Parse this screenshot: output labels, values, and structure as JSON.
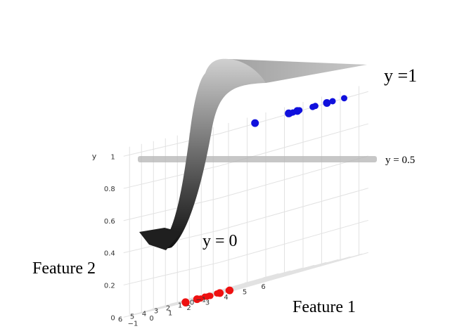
{
  "chart_data": {
    "type": "scatter",
    "subtype": "3d-surface-logistic",
    "zlabel": "y",
    "xlabel": "Feature 1",
    "ylabel": "Feature 2",
    "z_ticks": [
      "0",
      "0.2",
      "0.4",
      "0.6",
      "0.8",
      "1"
    ],
    "feature1_ticks": [
      "−1",
      "0",
      "1",
      "2",
      "3",
      "4",
      "5",
      "6"
    ],
    "feature2_ticks": [
      "−1",
      "0",
      "1",
      "2",
      "3",
      "4",
      "5",
      "6"
    ],
    "zlim": [
      0,
      1
    ],
    "grid": true,
    "annotations": {
      "top": "y =1",
      "mid": "y = 0.5",
      "bottom": "y = 0"
    },
    "threshold": 0.5,
    "colors": {
      "class_1": "#1010dd",
      "class_0": "#ee1111",
      "threshold_plane": "#b4b4b4",
      "surface_high": "#c0c0c0",
      "surface_low": "#1a1a1a"
    },
    "series": [
      {
        "class": "y = 1",
        "color": "#1010dd",
        "points": [
          {
            "f1": 1.0,
            "f2": -0.6,
            "y": 1
          },
          {
            "f1": 2.5,
            "f2": -1.2,
            "y": 1
          },
          {
            "f1": 2.9,
            "f2": -0.8,
            "y": 1
          },
          {
            "f1": 3.4,
            "f2": -0.4,
            "y": 1
          },
          {
            "f1": 3.9,
            "f2": -0.9,
            "y": 1
          },
          {
            "f1": 4.3,
            "f2": -0.5,
            "y": 1
          },
          {
            "f1": 4.6,
            "f2": -1.0,
            "y": 1
          },
          {
            "f1": 5.1,
            "f2": -0.7,
            "y": 1
          },
          {
            "f1": 5.4,
            "f2": -1.2,
            "y": 1
          },
          {
            "f1": 3.0,
            "f2": -0.3,
            "y": 1
          },
          {
            "f1": 3.7,
            "f2": -0.1,
            "y": 1
          },
          {
            "f1": 2.2,
            "f2": -1.6,
            "y": 1
          }
        ]
      },
      {
        "class": "y = 0",
        "color": "#ee1111",
        "points": [
          {
            "f1": -1.5,
            "f2": 1.3,
            "y": 0
          },
          {
            "f1": -1.2,
            "f2": 1.8,
            "y": 0
          },
          {
            "f1": -0.9,
            "f2": 1.0,
            "y": 0
          },
          {
            "f1": -0.7,
            "f2": 1.6,
            "y": 0
          },
          {
            "f1": -0.4,
            "f2": 1.2,
            "y": 0
          },
          {
            "f1": -0.1,
            "f2": 1.5,
            "y": 0
          },
          {
            "f1": 0.2,
            "f2": 1.1,
            "y": 0
          },
          {
            "f1": 0.5,
            "f2": 1.8,
            "y": 0
          },
          {
            "f1": 0.8,
            "f2": 1.3,
            "y": 0
          },
          {
            "f1": -1.0,
            "f2": 2.1,
            "y": 0
          },
          {
            "f1": 0.1,
            "f2": 2.2,
            "y": 0
          },
          {
            "f1": -0.5,
            "f2": 0.8,
            "y": 0
          },
          {
            "f1": 0.6,
            "f2": 0.9,
            "y": 0
          }
        ]
      }
    ]
  }
}
